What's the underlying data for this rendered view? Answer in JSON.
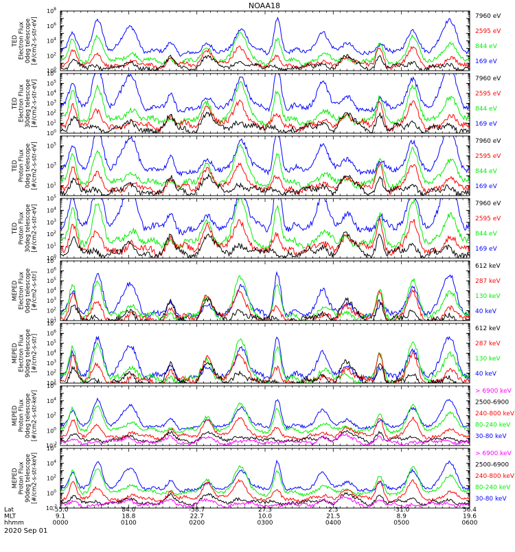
{
  "title": "NOAA18",
  "date_label": "2020 Sep 01",
  "colors": {
    "blue": "#0000ff",
    "red": "#ff0000",
    "green": "#00ee00",
    "black": "#000000",
    "magenta": "#ff00ff"
  },
  "footer": {
    "row_labels": [
      "Lat",
      "MLT",
      "hhmm"
    ],
    "ticks": [
      {
        "lat": "-55.0",
        "mlt": "9.1",
        "hhmm": "0000"
      },
      {
        "lat": "84.0",
        "mlt": "18.8",
        "hhmm": "0100"
      },
      {
        "lat": "-58.7",
        "mlt": "22.7",
        "hhmm": "0200"
      },
      {
        "lat": "27.3",
        "mlt": "10.0",
        "hhmm": "0300"
      },
      {
        "lat": "2.3",
        "mlt": "21.5",
        "hhmm": "0400"
      },
      {
        "lat": "-31.0",
        "mlt": "8.9",
        "hhmm": "0500"
      },
      {
        "lat": "56.4",
        "mlt": "19.6",
        "hhmm": "0600"
      }
    ]
  },
  "chart_data": [
    {
      "type": "line",
      "ylabel": "TED Electron Flux 0deg telescope [#/cm2-s-str-eV]",
      "ylim_exp": [
        0,
        8
      ],
      "ytick_exp": [
        0,
        2,
        4,
        6,
        8
      ],
      "log_scale": true,
      "legend": [
        {
          "text": "7960 eV",
          "color": "black"
        },
        {
          "text": "2595 eV",
          "color": "red"
        },
        {
          "text": "844 eV",
          "color": "green"
        },
        {
          "text": "169 eV",
          "color": "blue"
        }
      ]
    },
    {
      "type": "line",
      "ylabel": "TED Electron Flux 30deg telescope [#/cm2-s-str-eV]",
      "ylim_exp": [
        0,
        6
      ],
      "ytick_exp": [
        0,
        1,
        2,
        3,
        4,
        5,
        6
      ],
      "log_scale": true,
      "legend": [
        {
          "text": "7960 eV",
          "color": "black"
        },
        {
          "text": "2595 eV",
          "color": "red"
        },
        {
          "text": "844 eV",
          "color": "green"
        },
        {
          "text": "169 eV",
          "color": "blue"
        }
      ]
    },
    {
      "type": "line",
      "ylabel": "TED Proton Flux 0deg telescope [#/cm2-s-str-eV]",
      "ylim_exp": [
        0,
        6
      ],
      "ytick_exp": [
        1,
        3,
        5
      ],
      "log_scale": true,
      "legend": [
        {
          "text": "7960 eV",
          "color": "black"
        },
        {
          "text": "2595 eV",
          "color": "red"
        },
        {
          "text": "844 eV",
          "color": "green"
        },
        {
          "text": "169 eV",
          "color": "blue"
        }
      ]
    },
    {
      "type": "line",
      "ylabel": "TED Proton Flux 30deg telescope [#/cm2-s-str-eV]",
      "ylim_exp": [
        0,
        5
      ],
      "ytick_exp": [
        0,
        1,
        2,
        3,
        4,
        5
      ],
      "log_scale": true,
      "legend": [
        {
          "text": "7960 eV",
          "color": "black"
        },
        {
          "text": "2595 eV",
          "color": "red"
        },
        {
          "text": "844 eV",
          "color": "green"
        },
        {
          "text": "169 eV",
          "color": "blue"
        }
      ]
    },
    {
      "type": "line",
      "ylabel": "MEPED Electron Flux 0deg telescope [#/cm2-s-str]",
      "ylim_exp": [
        1,
        7
      ],
      "ytick_exp": [
        1,
        2,
        3,
        4,
        5,
        6,
        7
      ],
      "log_scale": true,
      "legend": [
        {
          "text": "612 keV",
          "color": "black"
        },
        {
          "text": "287 keV",
          "color": "red"
        },
        {
          "text": "130 keV",
          "color": "green"
        },
        {
          "text": "40 keV",
          "color": "blue"
        }
      ]
    },
    {
      "type": "line",
      "ylabel": "MEPED Electron Flux 90deg telescope [#/cm2-s-str]",
      "ylim_exp": [
        1,
        7
      ],
      "ytick_exp": [
        1,
        2,
        3,
        4,
        5,
        6,
        7
      ],
      "log_scale": true,
      "legend": [
        {
          "text": "612 keV",
          "color": "black"
        },
        {
          "text": "287 keV",
          "color": "red"
        },
        {
          "text": "130 keV",
          "color": "green"
        },
        {
          "text": "40 keV",
          "color": "blue"
        }
      ]
    },
    {
      "type": "line",
      "ylabel": "MEPED Proton Flux 0deg telescope [#/cm2-s-str-keV]",
      "ylim_exp": [
        -2,
        6
      ],
      "ytick_exp": [
        -2,
        0,
        2,
        4,
        6
      ],
      "log_scale": true,
      "legend": [
        {
          "text": "> 6900 keV",
          "color": "magenta"
        },
        {
          "text": "2500-6900",
          "color": "black"
        },
        {
          "text": "240-800 keV",
          "color": "red"
        },
        {
          "text": "80-240 keV",
          "color": "green"
        },
        {
          "text": "30-80 keV",
          "color": "blue"
        }
      ]
    },
    {
      "type": "line",
      "ylabel": "MEPED Proton Flux 90deg telescope [#/cm2-s-str-keV]",
      "ylim_exp": [
        -2,
        6
      ],
      "ytick_exp": [
        -2,
        0,
        2,
        4,
        6
      ],
      "log_scale": true,
      "legend": [
        {
          "text": "> 6900 keV",
          "color": "magenta"
        },
        {
          "text": "2500-6900",
          "color": "black"
        },
        {
          "text": "240-800 keV",
          "color": "red"
        },
        {
          "text": "80-240 keV",
          "color": "green"
        },
        {
          "text": "30-80 keV",
          "color": "blue"
        }
      ]
    }
  ]
}
